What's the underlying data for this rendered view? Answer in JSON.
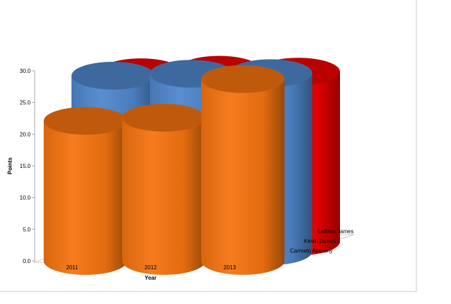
{
  "chart_data": {
    "type": "bar",
    "subtype": "3d-cylinder",
    "categories": [
      "2011",
      "2012",
      "2013"
    ],
    "series": [
      {
        "name": "Carmelo Anthony",
        "values": [
          22.1,
          22.6,
          28.7
        ],
        "color": "#f57410"
      },
      {
        "name": "Kevin Durant",
        "values": [
          27.7,
          28.0,
          28.1
        ],
        "color": "#4f87cc"
      },
      {
        "name": "LeBron James",
        "values": [
          26.7,
          27.1,
          26.8
        ],
        "color": "#ee0000"
      }
    ],
    "xlabel": "Year",
    "ylabel": "Points",
    "ylim": [
      0,
      30
    ],
    "yticks": [
      "0.0",
      "5.0",
      "10.0",
      "15.0",
      "20.0",
      "25.0",
      "30.0"
    ],
    "legend": "depth-axis-labels",
    "grid": false
  }
}
